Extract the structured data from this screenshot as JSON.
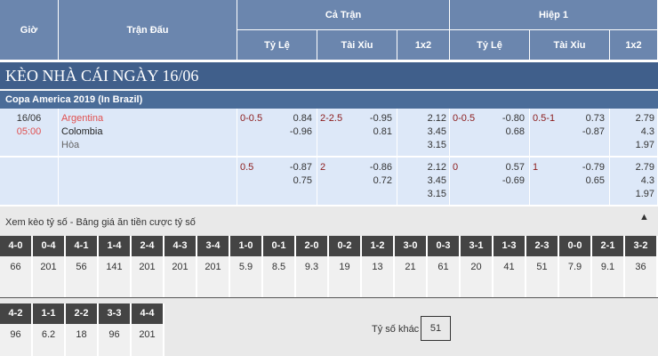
{
  "header": {
    "gio": "Giờ",
    "tran_dau": "Trận Đấu",
    "ca_tran": "Cả Trận",
    "hiep1": "Hiệp 1",
    "ty_le": "Tỷ Lệ",
    "tai_xiu": "Tài Xỉu",
    "x12": "1x2"
  },
  "title": "KÈO NHÀ CÁI NGÀY 16/06",
  "league": "Copa America 2019 (In Brazil)",
  "match": {
    "date": "16/06",
    "time": "05:00",
    "home": "Argentina",
    "away": "Colombia",
    "draw": "Hòa"
  },
  "rows": [
    {
      "ft_hdp": "0-0.5",
      "ft_hdp_o": [
        "0.84",
        "-0.96"
      ],
      "ft_ou": "2-2.5",
      "ft_ou_o": [
        "-0.95",
        "0.81"
      ],
      "ft_1x2": [
        "2.12",
        "3.45",
        "3.15"
      ],
      "h1_hdp": "0-0.5",
      "h1_hdp_o": [
        "-0.80",
        "0.68"
      ],
      "h1_ou": "0.5-1",
      "h1_ou_o": [
        "0.73",
        "-0.87"
      ],
      "h1_1x2": [
        "2.79",
        "4.3",
        "1.97"
      ]
    },
    {
      "ft_hdp": "0.5",
      "ft_hdp_o": [
        "-0.87",
        "0.75"
      ],
      "ft_ou": "2",
      "ft_ou_o": [
        "-0.86",
        "0.72"
      ],
      "ft_1x2": [
        "2.12",
        "3.45",
        "3.15"
      ],
      "h1_hdp": "0",
      "h1_hdp_o": [
        "0.57",
        "-0.69"
      ],
      "h1_ou": "1",
      "h1_ou_o": [
        "-0.79",
        "0.65"
      ],
      "h1_1x2": [
        "2.79",
        "4.3",
        "1.97"
      ]
    }
  ],
  "scores": {
    "caption": "Xem kèo tỷ số - Bảng giá ăn tiền cược tỷ số",
    "toggle_icon": "triangle-up",
    "row1": [
      [
        "4-0",
        "66"
      ],
      [
        "0-4",
        "201"
      ],
      [
        "4-1",
        "56"
      ],
      [
        "1-4",
        "141"
      ],
      [
        "2-4",
        "201"
      ],
      [
        "4-3",
        "201"
      ],
      [
        "3-4",
        "201"
      ],
      [
        "1-0",
        "5.9"
      ],
      [
        "0-1",
        "8.5"
      ],
      [
        "2-0",
        "9.3"
      ],
      [
        "0-2",
        "19"
      ],
      [
        "1-2",
        "13"
      ],
      [
        "3-0",
        "21"
      ],
      [
        "0-3",
        "61"
      ],
      [
        "3-1",
        "20"
      ],
      [
        "1-3",
        "41"
      ],
      [
        "2-3",
        "51"
      ],
      [
        "0-0",
        "7.9"
      ],
      [
        "2-1",
        "9.1"
      ],
      [
        "3-2",
        "36"
      ]
    ],
    "row2": [
      [
        "4-2",
        "96"
      ],
      [
        "1-1",
        "6.2"
      ],
      [
        "2-2",
        "18"
      ],
      [
        "3-3",
        "96"
      ],
      [
        "4-4",
        "201"
      ]
    ],
    "other_label": "Tỷ số khác",
    "other_value": "51"
  }
}
